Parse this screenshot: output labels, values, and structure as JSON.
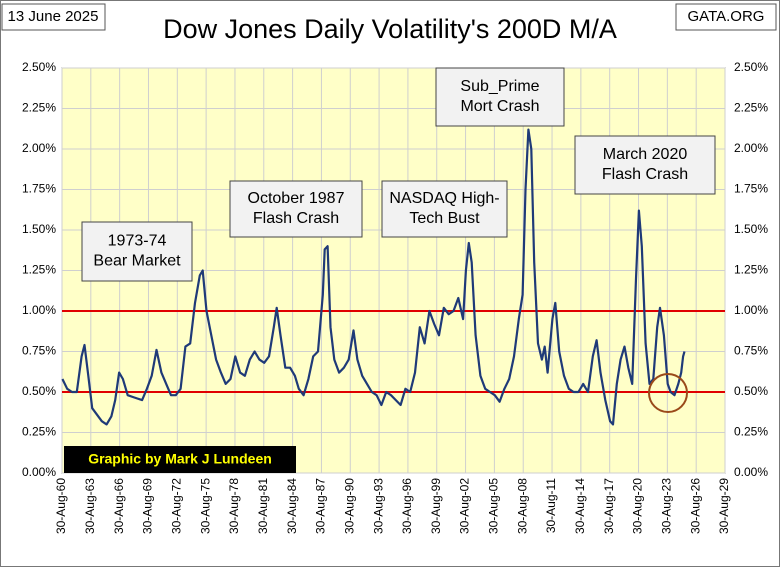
{
  "chart_data": {
    "type": "line",
    "title": "Dow Jones Daily Volatility's 200D M/A",
    "date": "13 June 2025",
    "source": "GATA.ORG",
    "credit": "Graphic by Mark J Lundeen",
    "color": "#1f3a78",
    "grid": true,
    "reference_lines": {
      "values": [
        1.0,
        0.5
      ],
      "color": "#e00000"
    },
    "annotations": [
      {
        "lines": [
          "1973-74",
          "Bear Market"
        ]
      },
      {
        "lines": [
          "October 1987",
          "Flash Crash"
        ]
      },
      {
        "lines": [
          "NASDAQ High-",
          "Tech Bust"
        ]
      },
      {
        "lines": [
          "Sub_Prime",
          "Mort Crash"
        ]
      },
      {
        "lines": [
          "March 2020",
          "Flash Crash"
        ]
      }
    ],
    "xlim": [
      1960.66,
      2029.66
    ],
    "xticks": [
      {
        "value": 1960.66,
        "label": "30-Aug-60"
      },
      {
        "value": 1963.66,
        "label": "30-Aug-63"
      },
      {
        "value": 1966.66,
        "label": "30-Aug-66"
      },
      {
        "value": 1969.66,
        "label": "30-Aug-69"
      },
      {
        "value": 1972.66,
        "label": "30-Aug-72"
      },
      {
        "value": 1975.66,
        "label": "30-Aug-75"
      },
      {
        "value": 1978.66,
        "label": "30-Aug-78"
      },
      {
        "value": 1981.66,
        "label": "30-Aug-81"
      },
      {
        "value": 1984.66,
        "label": "30-Aug-84"
      },
      {
        "value": 1987.66,
        "label": "30-Aug-87"
      },
      {
        "value": 1990.66,
        "label": "30-Aug-90"
      },
      {
        "value": 1993.66,
        "label": "30-Aug-93"
      },
      {
        "value": 1996.66,
        "label": "30-Aug-96"
      },
      {
        "value": 1999.66,
        "label": "30-Aug-99"
      },
      {
        "value": 2002.66,
        "label": "30-Aug-02"
      },
      {
        "value": 2005.66,
        "label": "30-Aug-05"
      },
      {
        "value": 2008.66,
        "label": "30-Aug-08"
      },
      {
        "value": 2011.66,
        "label": "30-Aug-11"
      },
      {
        "value": 2014.66,
        "label": "30-Aug-14"
      },
      {
        "value": 2017.66,
        "label": "30-Aug-17"
      },
      {
        "value": 2020.66,
        "label": "30-Aug-20"
      },
      {
        "value": 2023.66,
        "label": "30-Aug-23"
      },
      {
        "value": 2026.66,
        "label": "30-Aug-26"
      },
      {
        "value": 2029.66,
        "label": "30-Aug-29"
      }
    ],
    "ylim": [
      0,
      2.5
    ],
    "yticks": [
      {
        "value": 0,
        "label": "0.00%"
      },
      {
        "value": 0.25,
        "label": "0.25%"
      },
      {
        "value": 0.5,
        "label": "0.50%"
      },
      {
        "value": 0.75,
        "label": "0.75%"
      },
      {
        "value": 1.0,
        "label": "1.00%"
      },
      {
        "value": 1.25,
        "label": "1.25%"
      },
      {
        "value": 1.5,
        "label": "1.50%"
      },
      {
        "value": 1.75,
        "label": "1.75%"
      },
      {
        "value": 2.0,
        "label": "2.00%"
      },
      {
        "value": 2.25,
        "label": "2.25%"
      },
      {
        "value": 2.5,
        "label": "2.50%"
      }
    ],
    "x": [
      1960.7,
      1961.2,
      1961.7,
      1962.2,
      1962.7,
      1963.0,
      1963.4,
      1963.8,
      1964.3,
      1964.8,
      1965.3,
      1965.8,
      1966.2,
      1966.6,
      1967.0,
      1967.5,
      1968.0,
      1968.5,
      1969.0,
      1969.5,
      1970.0,
      1970.5,
      1971.0,
      1971.5,
      1972.0,
      1972.5,
      1973.0,
      1973.5,
      1974.0,
      1974.5,
      1975.0,
      1975.3,
      1975.7,
      1976.2,
      1976.7,
      1977.2,
      1977.7,
      1978.2,
      1978.7,
      1979.2,
      1979.7,
      1980.2,
      1980.7,
      1981.2,
      1981.7,
      1982.2,
      1982.7,
      1983.0,
      1983.4,
      1983.9,
      1984.4,
      1984.9,
      1985.3,
      1985.8,
      1986.3,
      1986.8,
      1987.3,
      1987.8,
      1988.0,
      1988.3,
      1988.6,
      1989.0,
      1989.5,
      1990.0,
      1990.5,
      1991.0,
      1991.4,
      1991.9,
      1992.4,
      1992.9,
      1993.4,
      1993.9,
      1994.4,
      1994.9,
      1995.4,
      1995.9,
      1996.4,
      1996.9,
      1997.4,
      1997.9,
      1998.4,
      1998.9,
      1999.4,
      1999.9,
      2000.4,
      2000.9,
      2001.4,
      2001.9,
      2002.4,
      2002.7,
      2003.0,
      2003.3,
      2003.7,
      2004.2,
      2004.7,
      2005.2,
      2005.7,
      2006.2,
      2006.7,
      2007.2,
      2007.7,
      2008.2,
      2008.6,
      2008.9,
      2009.2,
      2009.5,
      2009.8,
      2010.2,
      2010.6,
      2010.9,
      2011.2,
      2011.7,
      2012.0,
      2012.4,
      2012.9,
      2013.4,
      2013.9,
      2014.4,
      2014.9,
      2015.4,
      2015.9,
      2016.3,
      2016.7,
      2017.2,
      2017.7,
      2018.0,
      2018.4,
      2018.8,
      2019.2,
      2019.6,
      2020.0,
      2020.4,
      2020.7,
      2021.0,
      2021.4,
      2021.8,
      2022.2,
      2022.6,
      2022.9,
      2023.3,
      2023.7,
      2024.0,
      2024.4,
      2024.8,
      2025.1,
      2025.3,
      2025.45
    ],
    "values": [
      0.58,
      0.52,
      0.5,
      0.5,
      0.72,
      0.79,
      0.6,
      0.4,
      0.36,
      0.32,
      0.3,
      0.35,
      0.45,
      0.62,
      0.58,
      0.48,
      0.47,
      0.46,
      0.45,
      0.52,
      0.6,
      0.76,
      0.62,
      0.55,
      0.48,
      0.48,
      0.52,
      0.78,
      0.8,
      1.05,
      1.22,
      1.25,
      1.0,
      0.85,
      0.7,
      0.62,
      0.55,
      0.58,
      0.72,
      0.62,
      0.6,
      0.7,
      0.75,
      0.7,
      0.68,
      0.72,
      0.9,
      1.02,
      0.85,
      0.65,
      0.65,
      0.6,
      0.52,
      0.48,
      0.58,
      0.72,
      0.75,
      1.1,
      1.38,
      1.4,
      0.9,
      0.7,
      0.62,
      0.65,
      0.7,
      0.88,
      0.7,
      0.6,
      0.55,
      0.5,
      0.48,
      0.42,
      0.5,
      0.48,
      0.45,
      0.42,
      0.52,
      0.5,
      0.62,
      0.9,
      0.8,
      1.0,
      0.92,
      0.85,
      1.02,
      0.98,
      1.0,
      1.08,
      0.95,
      1.25,
      1.42,
      1.3,
      0.85,
      0.6,
      0.52,
      0.5,
      0.48,
      0.44,
      0.52,
      0.58,
      0.72,
      0.95,
      1.1,
      1.75,
      2.12,
      2.0,
      1.3,
      0.8,
      0.7,
      0.78,
      0.62,
      0.95,
      1.05,
      0.75,
      0.6,
      0.52,
      0.5,
      0.5,
      0.55,
      0.5,
      0.72,
      0.82,
      0.62,
      0.45,
      0.32,
      0.3,
      0.55,
      0.7,
      0.78,
      0.65,
      0.55,
      1.2,
      1.62,
      1.4,
      0.8,
      0.55,
      0.58,
      0.9,
      1.02,
      0.85,
      0.55,
      0.5,
      0.48,
      0.55,
      0.62,
      0.72,
      0.75
    ]
  }
}
